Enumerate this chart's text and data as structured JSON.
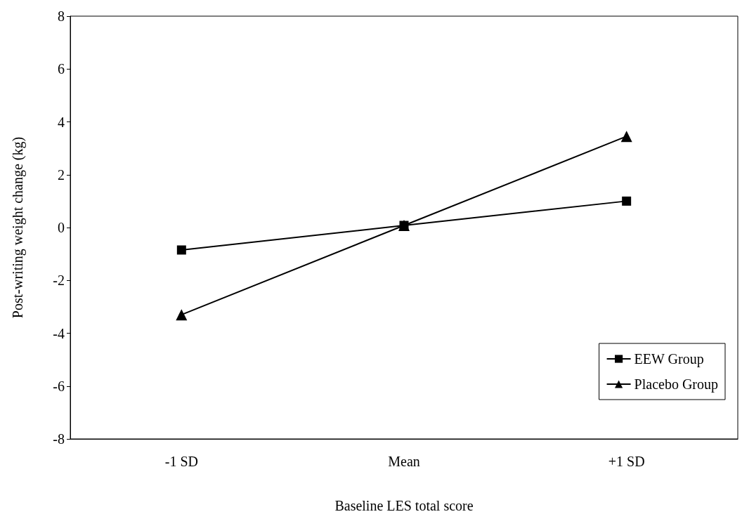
{
  "chart_data": {
    "type": "line",
    "xlabel": "Baseline LES total score",
    "ylabel": "Post-writing weight change (kg)",
    "categories": [
      "-1 SD",
      "Mean",
      "+1 SD"
    ],
    "series": [
      {
        "name": "EEW Group",
        "color": "#000000",
        "marker": "square",
        "values": [
          -0.85,
          0.08,
          1.0
        ]
      },
      {
        "name": "Placebo Group",
        "color": "#000000",
        "marker": "triangle",
        "values": [
          -3.3,
          0.08,
          3.45
        ]
      }
    ],
    "ylim": [
      -8,
      8
    ],
    "yticks": [
      -8,
      -6,
      -4,
      -2,
      0,
      2,
      4,
      6,
      8
    ],
    "grid": false,
    "legend": "bottom right",
    "line_style": "solid"
  }
}
